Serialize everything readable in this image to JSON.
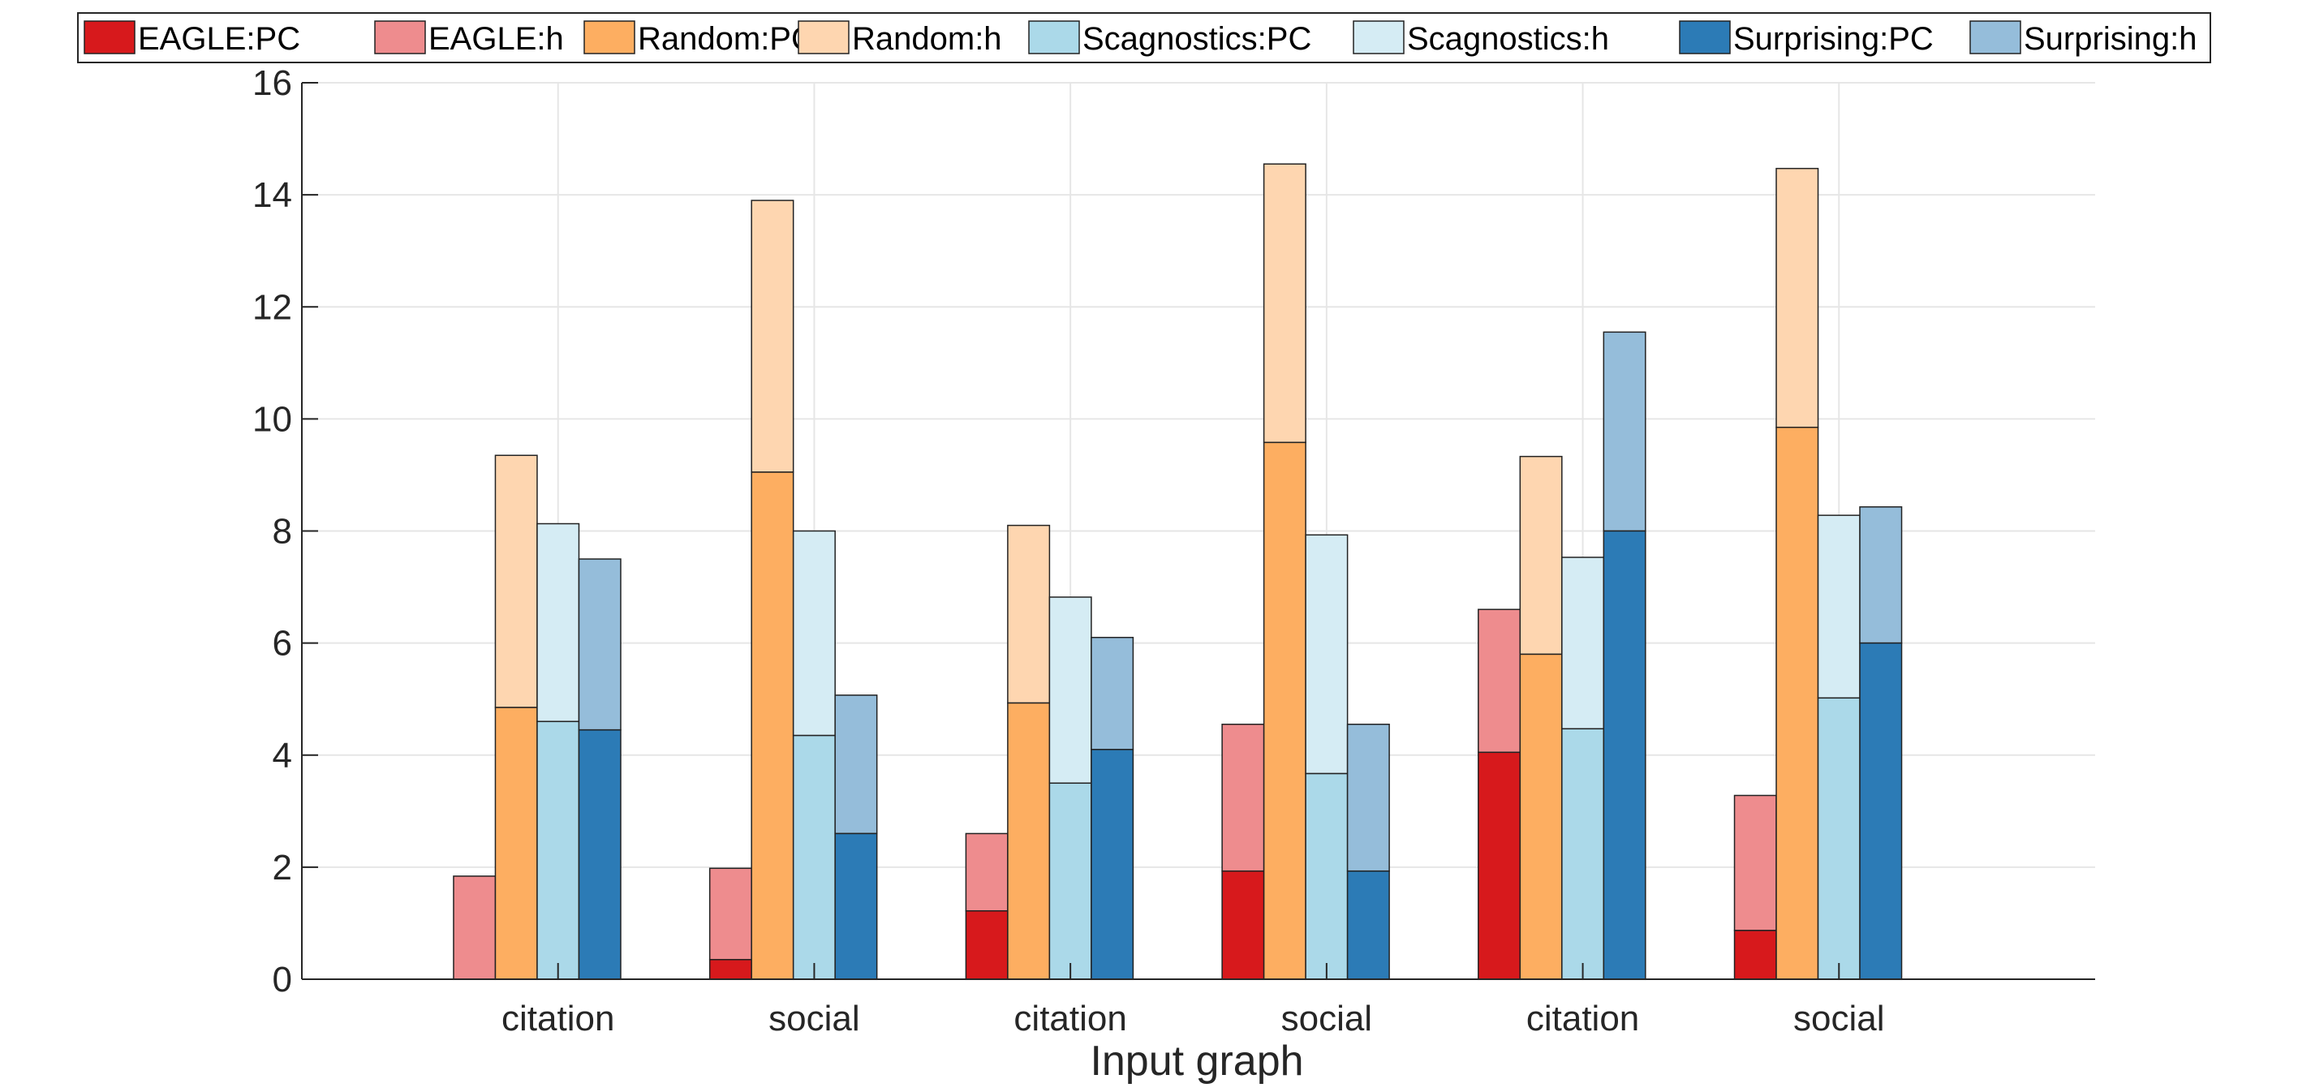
{
  "chart_data": {
    "type": "bar",
    "subtype": "grouped-stacked",
    "title": "",
    "xlabel": "Input graph",
    "ylabel": "",
    "ylim": [
      0,
      16
    ],
    "yticks": [
      0,
      2,
      4,
      6,
      8,
      10,
      12,
      14,
      16
    ],
    "grid": true,
    "legend_position": "top",
    "categories": [
      "citation",
      "social",
      "citation",
      "social",
      "citation",
      "social"
    ],
    "legend": [
      {
        "label": "EAGLE:PC",
        "color": "#d7191c"
      },
      {
        "label": "EAGLE:h",
        "color": "#ee8c8e"
      },
      {
        "label": "Random:PC",
        "color": "#fdae61"
      },
      {
        "label": "Random:h",
        "color": "#fed6b0"
      },
      {
        "label": "Scagnostics:PC",
        "color": "#abd9e9"
      },
      {
        "label": "Scagnostics:h",
        "color": "#d5ecf4"
      },
      {
        "label": "Surprising:PC",
        "color": "#2c7bb6"
      },
      {
        "label": "Surprising:h",
        "color": "#95bdda"
      }
    ],
    "series": [
      {
        "name": "EAGLE",
        "pc_color": "#d7191c",
        "h_color": "#ee8c8e",
        "pc": [
          0,
          0.35,
          1.22,
          1.93,
          4.05,
          0.87
        ],
        "total": [
          1.84,
          1.98,
          2.6,
          4.55,
          6.6,
          3.28
        ]
      },
      {
        "name": "Random",
        "pc_color": "#fdae61",
        "h_color": "#fed6b0",
        "pc": [
          4.85,
          9.05,
          4.93,
          9.58,
          5.8,
          9.85
        ],
        "total": [
          9.35,
          13.9,
          8.1,
          14.55,
          9.33,
          14.47
        ]
      },
      {
        "name": "Scagnostics",
        "pc_color": "#abd9e9",
        "h_color": "#d5ecf4",
        "pc": [
          4.6,
          4.35,
          3.5,
          3.67,
          4.47,
          5.02
        ],
        "total": [
          8.13,
          8.0,
          6.82,
          7.93,
          7.53,
          8.28
        ]
      },
      {
        "name": "Surprising",
        "pc_color": "#2c7bb6",
        "h_color": "#95bdda",
        "pc": [
          4.45,
          2.6,
          4.1,
          1.93,
          8.0,
          6.0
        ],
        "total": [
          7.5,
          5.07,
          6.1,
          4.55,
          11.55,
          8.43
        ]
      }
    ]
  }
}
